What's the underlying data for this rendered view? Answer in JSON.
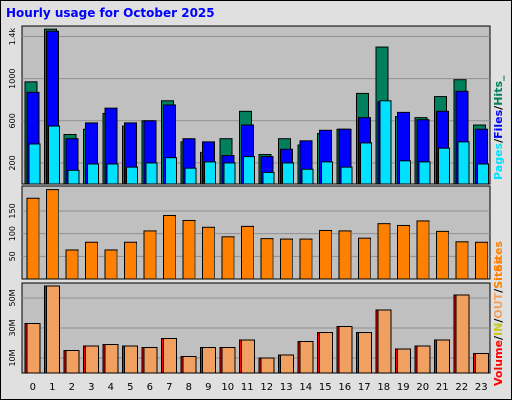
{
  "title": "Hourly usage for October 2025",
  "colors": {
    "background": "#e0e0e0",
    "plot_bg": "#c0c0c0",
    "title": "#0000ff",
    "hits": "#00805c",
    "files": "#0000ff",
    "pages": "#00e0ff",
    "sites": "#ff8000",
    "volume": "#ff0000",
    "in": "#f0a060",
    "out": "#c8c820"
  },
  "chart_data": [
    {
      "type": "bar",
      "name": "hits-files-pages",
      "categories": [
        "0",
        "1",
        "2",
        "3",
        "4",
        "5",
        "6",
        "7",
        "8",
        "9",
        "10",
        "11",
        "12",
        "13",
        "14",
        "15",
        "16",
        "17",
        "18",
        "19",
        "20",
        "21",
        "22",
        "23"
      ],
      "series": [
        {
          "name": "Hits",
          "values": [
            970,
            1470,
            470,
            520,
            670,
            550,
            600,
            790,
            400,
            300,
            430,
            690,
            280,
            430,
            370,
            480,
            520,
            860,
            1300,
            640,
            630,
            830,
            990,
            560
          ]
        },
        {
          "name": "Files",
          "values": [
            870,
            1450,
            430,
            580,
            720,
            580,
            600,
            750,
            430,
            400,
            270,
            560,
            260,
            330,
            410,
            510,
            520,
            630,
            780,
            680,
            610,
            690,
            880,
            520
          ]
        },
        {
          "name": "Pages",
          "values": [
            380,
            550,
            130,
            190,
            190,
            160,
            200,
            250,
            150,
            210,
            200,
            260,
            110,
            200,
            140,
            210,
            160,
            390,
            790,
            220,
            210,
            340,
            400,
            190
          ]
        }
      ],
      "ytick_labels": [
        "200",
        "600",
        "1000",
        "1.4k"
      ],
      "ytick_values": [
        200,
        600,
        1000,
        1400
      ],
      "ylim": [
        0,
        1500
      ],
      "legend": [
        "Pages",
        "/",
        "Files",
        "/",
        "Hits",
        "_"
      ]
    },
    {
      "type": "bar",
      "name": "sites",
      "categories": [
        "0",
        "1",
        "2",
        "3",
        "4",
        "5",
        "6",
        "7",
        "8",
        "9",
        "10",
        "11",
        "12",
        "13",
        "14",
        "15",
        "16",
        "17",
        "18",
        "19",
        "20",
        "21",
        "22",
        "23"
      ],
      "series": [
        {
          "name": "Sites",
          "values": [
            178,
            197,
            64,
            81,
            64,
            81,
            106,
            140,
            129,
            114,
            93,
            116,
            89,
            88,
            88,
            107,
            106,
            90,
            122,
            118,
            128,
            105,
            82,
            81
          ]
        }
      ],
      "ytick_labels": [
        "50",
        "100",
        "150"
      ],
      "ytick_values": [
        50,
        100,
        150
      ],
      "ylim": [
        0,
        205
      ],
      "legend": [
        "Sites"
      ]
    },
    {
      "type": "bar",
      "name": "volume",
      "categories": [
        "0",
        "1",
        "2",
        "3",
        "4",
        "5",
        "6",
        "7",
        "8",
        "9",
        "10",
        "11",
        "12",
        "13",
        "14",
        "15",
        "16",
        "17",
        "18",
        "19",
        "20",
        "21",
        "22",
        "23"
      ],
      "series": [
        {
          "name": "Volume",
          "values": [
            33,
            58,
            15,
            18,
            19,
            18,
            17,
            23,
            11,
            17,
            17,
            22,
            10,
            12,
            21,
            27,
            31,
            27,
            42,
            16,
            18,
            22,
            52,
            13
          ]
        }
      ],
      "yunit": "MB",
      "ytick_labels": [
        "10M",
        "30M",
        "50M"
      ],
      "ytick_values": [
        10,
        30,
        50
      ],
      "ylim": [
        0,
        60
      ],
      "legend": [
        "Volume",
        "/",
        "IN",
        "/",
        "OUT",
        "/",
        "Sites"
      ]
    }
  ]
}
